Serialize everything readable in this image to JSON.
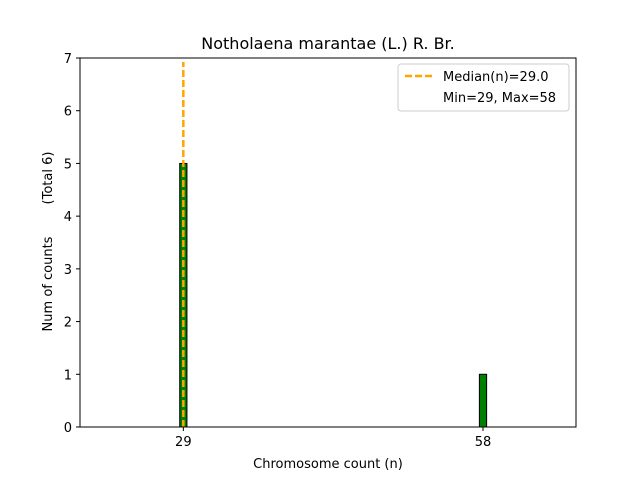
{
  "chart_data": {
    "type": "bar",
    "title": "Notholaena marantae (L.) R. Br.",
    "xlabel": "Chromosome count (n)",
    "ylabel": "Num of counts",
    "ylabel_total": "(Total 6)",
    "xlim": [
      19,
      67
    ],
    "ylim": [
      0,
      7
    ],
    "x_ticks": [
      29,
      58
    ],
    "y_ticks": [
      0,
      1,
      2,
      3,
      4,
      5,
      6,
      7
    ],
    "bars": [
      {
        "x": 29,
        "value": 5
      },
      {
        "x": 58,
        "value": 1
      }
    ],
    "bar_color": "#008000",
    "bar_edge_color": "#000000",
    "median": 29.0,
    "median_color": "#FFA500",
    "legend_position": "top-right",
    "legend": {
      "median_label": "Median(n)=29.0",
      "range_label": "Min=29, Max=58"
    },
    "grid": false
  }
}
